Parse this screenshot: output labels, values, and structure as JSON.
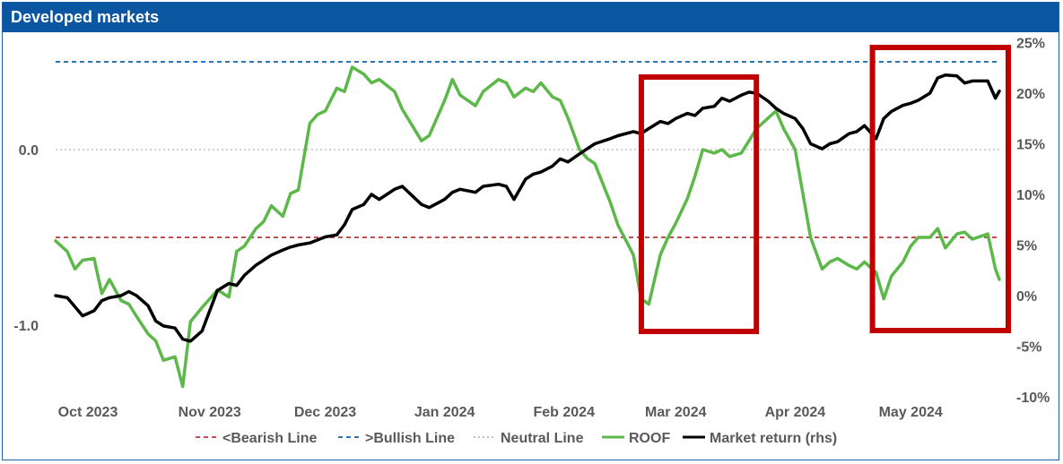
{
  "header": {
    "title": "Developed markets"
  },
  "chart_data": {
    "type": "line",
    "title": "Developed markets",
    "x_ticks": [
      "Oct 2023",
      "Nov 2023",
      "Dec 2023",
      "Jan 2024",
      "Feb 2024",
      "Mar 2024",
      "Apr 2024",
      "May 2024"
    ],
    "y_left": {
      "ticks": [
        "0.0",
        "-1.0"
      ],
      "tick_values": [
        0.0,
        -1.0
      ],
      "range": [
        -1.37,
        0.5
      ]
    },
    "y_right": {
      "ticks": [
        "25%",
        "20%",
        "15%",
        "10%",
        "5%",
        "0%",
        "-5%",
        "-10%"
      ],
      "tick_values": [
        25,
        20,
        15,
        10,
        5,
        0,
        -5,
        -10
      ],
      "range": [
        -10,
        25
      ]
    },
    "reference_lines": [
      {
        "name": "<Bearish Line",
        "value": -0.5,
        "color": "#c0504d",
        "style": "dashed"
      },
      {
        "name": ">Bullish Line",
        "value": 0.5,
        "color": "#2e75b6",
        "style": "dashed"
      },
      {
        "name": "Neutral Line",
        "value": 0.0,
        "color": "#bfbfbf",
        "style": "dotted"
      }
    ],
    "series": [
      {
        "name": "ROOF",
        "axis": "left",
        "color": "#5db84a",
        "x": [
          "2023-09-29",
          "2023-10-02",
          "2023-10-04",
          "2023-10-06",
          "2023-10-09",
          "2023-10-11",
          "2023-10-13",
          "2023-10-16",
          "2023-10-18",
          "2023-10-20",
          "2023-10-23",
          "2023-10-25",
          "2023-10-27",
          "2023-10-30",
          "2023-11-01",
          "2023-11-03",
          "2023-11-06",
          "2023-11-08",
          "2023-11-10",
          "2023-11-13",
          "2023-11-15",
          "2023-11-17",
          "2023-11-20",
          "2023-11-22",
          "2023-11-24",
          "2023-11-27",
          "2023-11-29",
          "2023-12-01",
          "2023-12-04",
          "2023-12-06",
          "2023-12-08",
          "2023-12-11",
          "2023-12-13",
          "2023-12-15",
          "2023-12-18",
          "2023-12-20",
          "2023-12-22",
          "2023-12-26",
          "2023-12-28",
          "2024-01-02",
          "2024-01-04",
          "2024-01-08",
          "2024-01-10",
          "2024-01-12",
          "2024-01-16",
          "2024-01-18",
          "2024-01-22",
          "2024-01-24",
          "2024-01-26",
          "2024-01-29",
          "2024-01-31",
          "2024-02-02",
          "2024-02-05",
          "2024-02-07",
          "2024-02-09",
          "2024-02-12",
          "2024-02-14",
          "2024-02-16",
          "2024-02-20",
          "2024-02-22",
          "2024-02-26",
          "2024-02-28",
          "2024-03-01",
          "2024-03-04",
          "2024-03-06",
          "2024-03-08",
          "2024-03-11",
          "2024-03-13",
          "2024-03-15",
          "2024-03-18",
          "2024-03-20",
          "2024-03-22",
          "2024-03-25",
          "2024-03-27",
          "2024-03-29",
          "2024-04-01",
          "2024-04-03",
          "2024-04-05",
          "2024-04-08",
          "2024-04-10",
          "2024-04-12",
          "2024-04-15",
          "2024-04-17",
          "2024-04-19",
          "2024-04-22",
          "2024-04-24",
          "2024-04-26",
          "2024-04-29",
          "2024-05-01",
          "2024-05-03",
          "2024-05-06",
          "2024-05-08",
          "2024-05-10",
          "2024-05-13",
          "2024-05-15",
          "2024-05-17",
          "2024-05-20",
          "2024-05-22",
          "2024-05-24",
          "2024-05-28",
          "2024-05-30",
          "2024-05-31"
        ],
        "y": [
          -0.52,
          -0.58,
          -0.68,
          -0.63,
          -0.62,
          -0.82,
          -0.74,
          -0.86,
          -0.88,
          -0.95,
          -1.05,
          -1.09,
          -1.2,
          -1.18,
          -1.35,
          -0.98,
          -0.9,
          -0.85,
          -0.8,
          -0.84,
          -0.58,
          -0.55,
          -0.45,
          -0.41,
          -0.32,
          -0.38,
          -0.25,
          -0.23,
          0.15,
          0.2,
          0.22,
          0.35,
          0.33,
          0.47,
          0.43,
          0.38,
          0.4,
          0.33,
          0.23,
          0.05,
          0.08,
          0.28,
          0.4,
          0.31,
          0.25,
          0.33,
          0.4,
          0.38,
          0.3,
          0.35,
          0.33,
          0.38,
          0.3,
          0.28,
          0.18,
          0.0,
          -0.05,
          -0.08,
          -0.3,
          -0.43,
          -0.6,
          -0.85,
          -0.88,
          -0.6,
          -0.5,
          -0.42,
          -0.28,
          -0.15,
          0.0,
          -0.02,
          0.0,
          -0.04,
          -0.02,
          0.05,
          0.12,
          0.18,
          0.22,
          0.12,
          0.0,
          -0.25,
          -0.5,
          -0.68,
          -0.64,
          -0.62,
          -0.66,
          -0.68,
          -0.64,
          -0.7,
          -0.85,
          -0.72,
          -0.64,
          -0.55,
          -0.5,
          -0.5,
          -0.45,
          -0.56,
          -0.48,
          -0.47,
          -0.51,
          -0.48,
          -0.68,
          -0.74
        ]
      },
      {
        "name": "Market return (rhs)",
        "axis": "right",
        "color": "#000000",
        "x": [
          "2023-09-29",
          "2023-10-02",
          "2023-10-04",
          "2023-10-06",
          "2023-10-09",
          "2023-10-11",
          "2023-10-13",
          "2023-10-16",
          "2023-10-18",
          "2023-10-20",
          "2023-10-23",
          "2023-10-25",
          "2023-10-27",
          "2023-10-30",
          "2023-11-01",
          "2023-11-03",
          "2023-11-06",
          "2023-11-08",
          "2023-11-10",
          "2023-11-13",
          "2023-11-15",
          "2023-11-17",
          "2023-11-20",
          "2023-11-22",
          "2023-11-24",
          "2023-11-27",
          "2023-11-29",
          "2023-12-01",
          "2023-12-04",
          "2023-12-06",
          "2023-12-08",
          "2023-12-11",
          "2023-12-13",
          "2023-12-15",
          "2023-12-18",
          "2023-12-20",
          "2023-12-22",
          "2023-12-26",
          "2023-12-28",
          "2024-01-02",
          "2024-01-04",
          "2024-01-08",
          "2024-01-10",
          "2024-01-12",
          "2024-01-16",
          "2024-01-18",
          "2024-01-22",
          "2024-01-24",
          "2024-01-26",
          "2024-01-29",
          "2024-01-31",
          "2024-02-02",
          "2024-02-05",
          "2024-02-07",
          "2024-02-09",
          "2024-02-12",
          "2024-02-14",
          "2024-02-16",
          "2024-02-20",
          "2024-02-22",
          "2024-02-26",
          "2024-02-28",
          "2024-03-01",
          "2024-03-04",
          "2024-03-06",
          "2024-03-08",
          "2024-03-11",
          "2024-03-13",
          "2024-03-15",
          "2024-03-18",
          "2024-03-20",
          "2024-03-22",
          "2024-03-25",
          "2024-03-27",
          "2024-03-29",
          "2024-04-01",
          "2024-04-03",
          "2024-04-05",
          "2024-04-08",
          "2024-04-10",
          "2024-04-12",
          "2024-04-15",
          "2024-04-17",
          "2024-04-19",
          "2024-04-22",
          "2024-04-24",
          "2024-04-26",
          "2024-04-29",
          "2024-05-01",
          "2024-05-03",
          "2024-05-06",
          "2024-05-08",
          "2024-05-10",
          "2024-05-13",
          "2024-05-15",
          "2024-05-17",
          "2024-05-20",
          "2024-05-22",
          "2024-05-24",
          "2024-05-28",
          "2024-05-30",
          "2024-05-31"
        ],
        "y": [
          0.0,
          -0.2,
          -1.1,
          -2.0,
          -1.5,
          -0.5,
          -0.2,
          0.0,
          0.4,
          0.0,
          -1.0,
          -2.5,
          -3.0,
          -3.2,
          -4.3,
          -4.5,
          -3.5,
          -1.5,
          0.5,
          1.2,
          1.0,
          2.0,
          3.0,
          3.5,
          4.0,
          4.5,
          4.8,
          5.0,
          5.2,
          5.5,
          5.8,
          6.0,
          7.0,
          8.5,
          9.0,
          10.0,
          9.5,
          10.5,
          10.8,
          9.0,
          8.7,
          9.5,
          10.2,
          10.5,
          10.2,
          10.8,
          11.0,
          10.8,
          9.5,
          11.5,
          12.0,
          12.2,
          12.8,
          13.5,
          13.2,
          14.0,
          14.5,
          15.0,
          15.5,
          15.8,
          16.2,
          16.0,
          16.5,
          17.2,
          17.0,
          17.5,
          18.0,
          17.8,
          18.5,
          18.7,
          19.5,
          19.2,
          19.8,
          20.1,
          20.0,
          19.2,
          18.5,
          18.0,
          17.5,
          16.5,
          15.0,
          14.5,
          15.0,
          15.2,
          16.0,
          16.2,
          16.8,
          15.5,
          17.5,
          18.2,
          18.8,
          19.0,
          19.3,
          20.0,
          21.5,
          21.8,
          21.7,
          21.0,
          21.2,
          21.2,
          19.5,
          20.2
        ]
      }
    ],
    "legend": {
      "placement": "bottom",
      "entries": [
        "<Bearish Line",
        ">Bullish Line",
        "Neutral Line",
        "ROOF",
        "Market return (rhs)"
      ]
    },
    "highlight_boxes": [
      {
        "from": "2024-02-29",
        "to": "2024-03-28",
        "color": "#c00000"
      },
      {
        "from": "2024-04-29",
        "to": "2024-05-31",
        "color": "#c00000"
      }
    ],
    "grid": false
  }
}
